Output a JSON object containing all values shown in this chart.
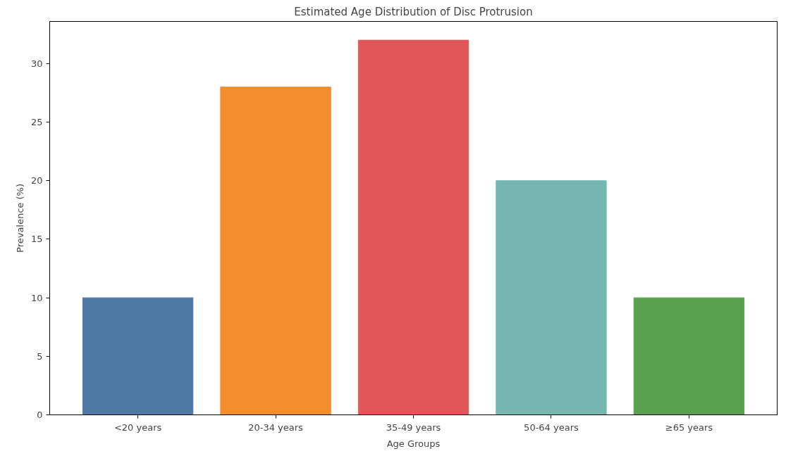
{
  "chart_data": {
    "type": "bar",
    "title": "Estimated Age Distribution of Disc Protrusion",
    "xlabel": "Age Groups",
    "ylabel": "Prevalence (%)",
    "categories": [
      "<20 years",
      "20-34 years",
      "35-49 years",
      "50-64 years",
      "≥65 years"
    ],
    "values": [
      10,
      28,
      32,
      20,
      10
    ],
    "colors": [
      "#4e79a7",
      "#f28e2b",
      "#e15759",
      "#76b7b2",
      "#59a14f"
    ],
    "ylim": [
      0,
      33.6
    ],
    "yticks": [
      0,
      5,
      10,
      15,
      20,
      25,
      30
    ],
    "grid": false
  }
}
